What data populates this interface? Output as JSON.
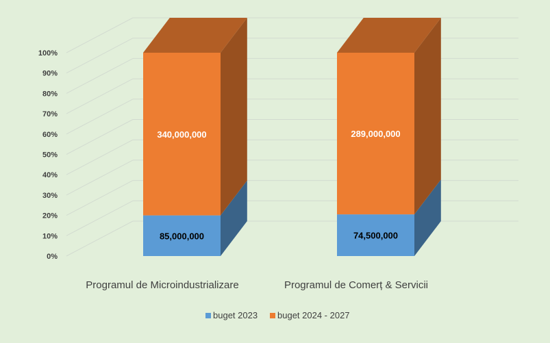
{
  "chart_data": {
    "type": "bar",
    "stacked": "percent",
    "three_d": true,
    "title": "",
    "xlabel": "",
    "ylabel": "",
    "categories": [
      "Programul de Microindustrializare",
      "Programul de Comerț & Servicii"
    ],
    "series": [
      {
        "name": "buget 2023",
        "values": [
          85000000,
          74500000
        ],
        "color": "#5b9bd5",
        "labels": [
          "85,000,000",
          "74,500,000"
        ]
      },
      {
        "name": "buget 2024 - 2027",
        "values": [
          340000000,
          289000000
        ],
        "color": "#ed7d31",
        "labels": [
          "340,000,000",
          "289,000,000"
        ]
      }
    ],
    "y_ticks": [
      "0%",
      "10%",
      "20%",
      "30%",
      "40%",
      "50%",
      "60%",
      "70%",
      "80%",
      "90%",
      "100%"
    ],
    "ylim": [
      0,
      1
    ],
    "grid": true,
    "legend_position": "bottom",
    "background": "#e2efda"
  }
}
